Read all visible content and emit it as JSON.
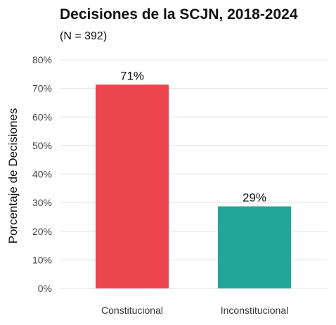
{
  "chart_data": {
    "type": "bar",
    "title": "Decisiones de la SCJN, 2018-2024",
    "subtitle": "(N = 392)",
    "xlabel": "",
    "ylabel": "Porcentaje de Decisiones",
    "categories": [
      "Constitucional",
      "Inconstitucional"
    ],
    "values": [
      71.3,
      28.7
    ],
    "data_labels": [
      "71%",
      "29%"
    ],
    "colors": [
      "#ec454e",
      "#21a699"
    ],
    "ylim": [
      0,
      80
    ],
    "yticks": [
      0,
      10,
      20,
      30,
      40,
      50,
      60,
      70,
      80
    ],
    "ytick_labels": [
      "0%",
      "10%",
      "20%",
      "30%",
      "40%",
      "50%",
      "60%",
      "70%",
      "80%"
    ],
    "grid": true,
    "legend": "none"
  }
}
